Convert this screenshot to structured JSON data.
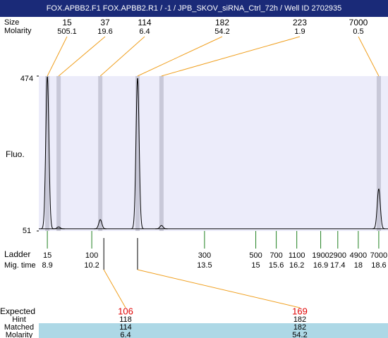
{
  "chart_data": {
    "type": "electropherogram",
    "title": "FOX.APBB2.F1  FOX.APBB2.R1 / -1 / JPB_SKOV_siRNA_Ctrl_72h / Well ID 2702935",
    "row_labels": {
      "size": "Size",
      "molarity": "Molarity",
      "ladder": "Ladder",
      "mig_time": "Mig. time"
    },
    "ylabel": "Fluo.",
    "ylim": [
      51,
      474
    ],
    "yticks": [
      51,
      474
    ],
    "xlim": [
      8.65,
      18.87
    ],
    "baseline": 57,
    "peaks": [
      {
        "size": 15,
        "molarity": 505.1,
        "time": 8.9,
        "height": 474
      },
      {
        "size": 37,
        "molarity": 19.6,
        "time": 9.23,
        "height": 62
      },
      {
        "size": 114,
        "molarity": 6.4,
        "time": 10.45,
        "height": 82
      },
      {
        "size": 182,
        "molarity": 54.2,
        "time": 11.54,
        "height": 470
      },
      {
        "size": 223,
        "molarity": 1.9,
        "time": 12.24,
        "height": 66
      },
      {
        "size": 7000,
        "molarity": 0.5,
        "time": 18.6,
        "height": 166
      }
    ],
    "ladder": {
      "sizes": [
        15,
        100,
        300,
        500,
        700,
        1100,
        1900,
        2900,
        4900,
        7000
      ],
      "mig_times": [
        8.9,
        10.2,
        13.5,
        15,
        15.6,
        16.2,
        16.9,
        17.4,
        18,
        18.6
      ]
    },
    "table": {
      "labels": [
        "Expected",
        "Hint",
        "Matched",
        "Molarity"
      ],
      "expected": [
        106,
        169
      ],
      "hint": [
        118,
        182
      ],
      "matched": [
        114,
        182
      ],
      "molarity": [
        6.4,
        54.2
      ]
    }
  }
}
